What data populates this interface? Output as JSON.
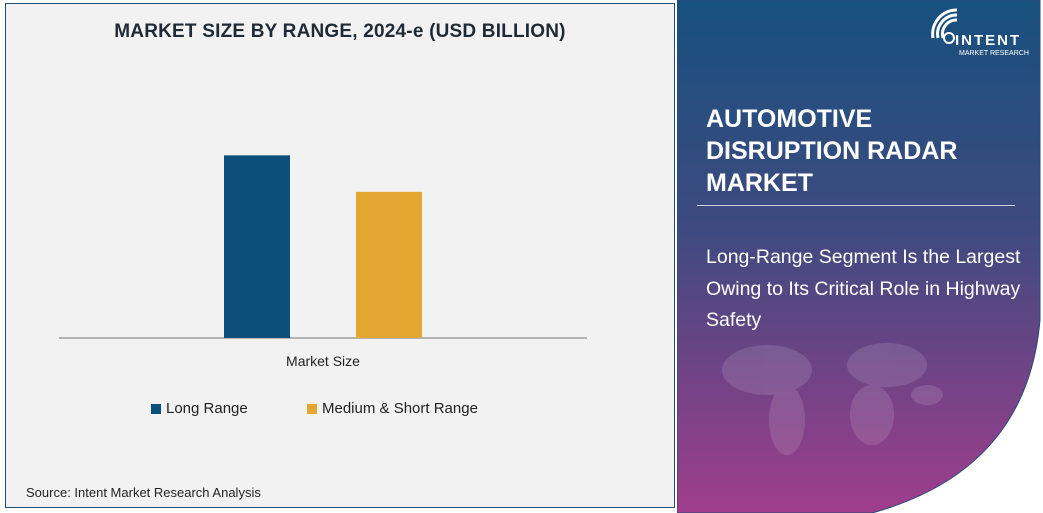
{
  "chart_data": {
    "type": "bar",
    "title": "MARKET SIZE BY RANGE, 2024-e (USD BILLION)",
    "categories": [
      "Market Size"
    ],
    "series": [
      {
        "name": "Long Range",
        "values": [
          1.0
        ],
        "color": "#0b4f7a"
      },
      {
        "name": "Medium & Short Range",
        "values": [
          0.8
        ],
        "color": "#e3a630"
      }
    ],
    "xlabel": "Market Size",
    "ylabel": "",
    "ylim": [
      0,
      1.5
    ],
    "grid": false,
    "legend": "bottom"
  },
  "source": "Source: Intent Market Research Analysis",
  "panel": {
    "title": "AUTOMOTIVE DISRUPTION RADAR MARKET",
    "subtitle": "Long-Range Segment Is the Largest Owing to Its Critical Role in Highway Safety",
    "logo_text": "INTENT",
    "logo_sub": "MARKET RESEARCH",
    "gradient_top": "#17507e",
    "gradient_bottom": "#a03d8c"
  }
}
